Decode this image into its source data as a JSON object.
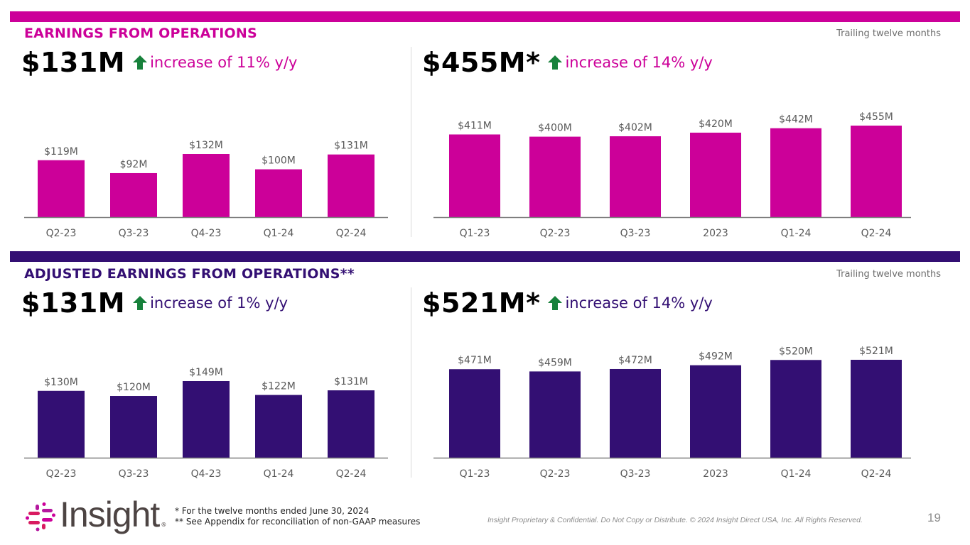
{
  "colors": {
    "magenta": "#cc0099",
    "purple": "#330f73",
    "up_arrow": "#17813b",
    "label_gray": "#595959"
  },
  "sections": [
    {
      "title": "EARNINGS FROM OPERATIONS",
      "ttm_label": "Trailing twelve months",
      "left_kpi": {
        "value": "$131M",
        "arrow": "arrow-up-icon",
        "change": "increase of 11% y/y"
      },
      "right_kpi": {
        "value": "$455M*",
        "arrow": "arrow-up-icon",
        "change": "increase of 14% y/y"
      }
    },
    {
      "title": "ADJUSTED EARNINGS FROM OPERATIONS**",
      "ttm_label": "Trailing twelve months",
      "left_kpi": {
        "value": "$131M",
        "arrow": "arrow-up-icon",
        "change": "increase of 1% y/y"
      },
      "right_kpi": {
        "value": "$521M*",
        "arrow": "arrow-up-icon",
        "change": "increase of 14% y/y"
      }
    }
  ],
  "chart_data": [
    {
      "type": "bar",
      "title": "Earnings from Operations (quarterly)",
      "xlabel": "",
      "ylabel": "",
      "categories": [
        "Q2-23",
        "Q3-23",
        "Q4-23",
        "Q1-24",
        "Q2-24"
      ],
      "values": [
        119,
        92,
        132,
        100,
        131
      ],
      "labels": [
        "$119M",
        "$92M",
        "$132M",
        "$100M",
        "$131M"
      ],
      "unit": "$M",
      "ylim": [
        0,
        132
      ],
      "grid": false,
      "color": "#cc0099"
    },
    {
      "type": "bar",
      "title": "Earnings from Operations (trailing twelve months)",
      "xlabel": "",
      "ylabel": "",
      "categories": [
        "Q1-23",
        "Q2-23",
        "Q3-23",
        "2023",
        "Q1-24",
        "Q2-24"
      ],
      "values": [
        411,
        400,
        402,
        420,
        442,
        455
      ],
      "labels": [
        "$411M",
        "$400M",
        "$402M",
        "$420M",
        "$442M",
        "$455M"
      ],
      "unit": "$M",
      "ylim": [
        0,
        455
      ],
      "grid": false,
      "color": "#cc0099"
    },
    {
      "type": "bar",
      "title": "Adjusted Earnings from Operations (quarterly)",
      "xlabel": "",
      "ylabel": "",
      "categories": [
        "Q2-23",
        "Q3-23",
        "Q4-23",
        "Q1-24",
        "Q2-24"
      ],
      "values": [
        130,
        120,
        149,
        122,
        131
      ],
      "labels": [
        "$130M",
        "$120M",
        "$149M",
        "$122M",
        "$131M"
      ],
      "unit": "$M",
      "ylim": [
        0,
        149
      ],
      "grid": false,
      "color": "#330f73"
    },
    {
      "type": "bar",
      "title": "Adjusted Earnings from Operations (trailing twelve months)",
      "xlabel": "",
      "ylabel": "",
      "categories": [
        "Q1-23",
        "Q2-23",
        "Q3-23",
        "2023",
        "Q1-24",
        "Q2-24"
      ],
      "values": [
        471,
        459,
        472,
        492,
        520,
        521
      ],
      "labels": [
        "$471M",
        "$459M",
        "$472M",
        "$492M",
        "$520M",
        "$521M"
      ],
      "unit": "$M",
      "ylim": [
        0,
        521
      ],
      "grid": false,
      "color": "#330f73"
    }
  ],
  "footer": {
    "logo_text": "Insight",
    "logo_reg": "®",
    "note1": "* For the twelve months ended June 30, 2024",
    "note2": "** See Appendix for reconciliation of non-GAAP measures",
    "legal": "Insight Proprietary & Confidential. Do Not Copy or Distribute. © 2024 Insight Direct USA, Inc. All Rights Reserved.",
    "page_number": "19"
  }
}
